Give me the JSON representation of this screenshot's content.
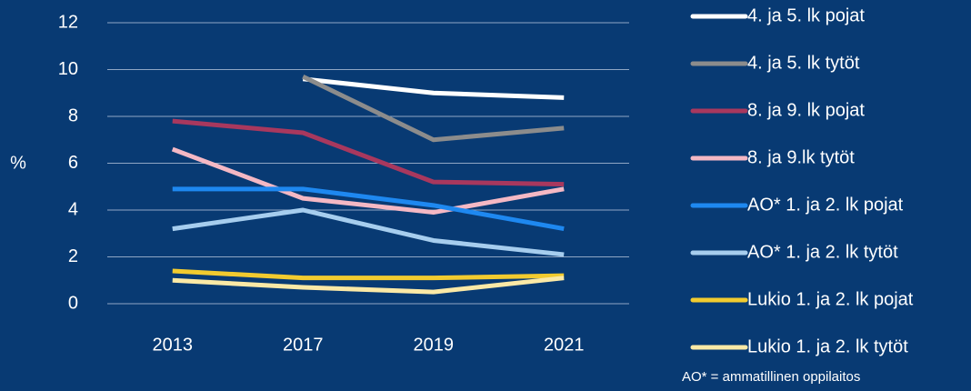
{
  "chart_data": {
    "type": "line",
    "categories": [
      "2013",
      "2017",
      "2019",
      "2021"
    ],
    "y_label": "%",
    "ylim": [
      0,
      12
    ],
    "yticks": [
      0,
      2,
      4,
      6,
      8,
      10,
      12
    ],
    "grid": true,
    "annotation": "AO* = ammatillinen oppilaitos",
    "series": [
      {
        "name": "4. ja 5. lk pojat",
        "color": "#ffffff",
        "values": [
          null,
          9.6,
          9.0,
          8.8
        ]
      },
      {
        "name": "4. ja 5. lk tytöt",
        "color": "#8c8c8c",
        "values": [
          null,
          9.7,
          7.0,
          7.5
        ]
      },
      {
        "name": "8. ja 9. lk pojat",
        "color": "#a8385e",
        "values": [
          7.8,
          7.3,
          5.2,
          5.1
        ]
      },
      {
        "name": "8. ja 9.lk tytöt",
        "color": "#f4b8c4",
        "values": [
          6.6,
          4.5,
          3.9,
          4.9
        ]
      },
      {
        "name": "AO* 1. ja 2. lk pojat",
        "color": "#1e88f0",
        "values": [
          4.9,
          4.9,
          4.2,
          3.2
        ]
      },
      {
        "name": "AO* 1. ja 2. lk tytöt",
        "color": "#a6cdee",
        "values": [
          3.2,
          4.0,
          2.7,
          2.1
        ]
      },
      {
        "name": "Lukio 1. ja 2. lk pojat",
        "color": "#f2cb2f",
        "values": [
          1.4,
          1.1,
          1.1,
          1.2
        ]
      },
      {
        "name": "Lukio 1. ja 2. lk tytöt",
        "color": "#fbe9a6",
        "values": [
          1.0,
          0.7,
          0.5,
          1.1
        ]
      }
    ]
  }
}
